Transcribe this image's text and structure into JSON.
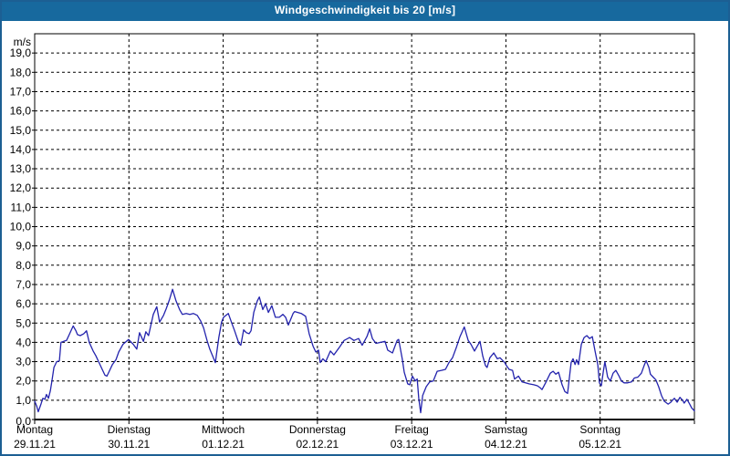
{
  "window": {
    "title": "Windgeschwindigkeit bis 20 [m/s]"
  },
  "colors": {
    "titlebar_bg": "#17699e",
    "titlebar_text": "#ffffff",
    "window_border": "#1c5f93",
    "plot_background": "#ffffff",
    "plot_border": "#000000",
    "gridline": "#000000",
    "line": "#2323ad",
    "label_text": "#000000"
  },
  "axes": {
    "y_unit_label": "m/s",
    "y_tick_labels": [
      "0,0",
      "1,0",
      "2,0",
      "3,0",
      "4,0",
      "5,0",
      "6,0",
      "7,0",
      "8,0",
      "9,0",
      "10,0",
      "11,0",
      "12,0",
      "13,0",
      "14,0",
      "15,0",
      "16,0",
      "17,0",
      "18,0",
      "19,0"
    ],
    "x_days": [
      {
        "name": "Montag",
        "date": "29.11.21"
      },
      {
        "name": "Dienstag",
        "date": "30.11.21"
      },
      {
        "name": "Mittwoch",
        "date": "01.12.21"
      },
      {
        "name": "Donnerstag",
        "date": "02.12.21"
      },
      {
        "name": "Freitag",
        "date": "03.12.21"
      },
      {
        "name": "Samstag",
        "date": "04.12.21"
      },
      {
        "name": "Sonntag",
        "date": "05.12.21"
      }
    ]
  },
  "chart_data": {
    "type": "line",
    "title": "Windgeschwindigkeit bis 20 [m/s]",
    "xlabel": "",
    "ylabel": "m/s",
    "ylim": [
      0,
      20
    ],
    "x_range_hours": [
      0,
      168
    ],
    "grid": true,
    "legend": false,
    "categories": [
      "Montag 29.11.21",
      "Dienstag 30.11.21",
      "Mittwoch 01.12.21",
      "Donnerstag 02.12.21",
      "Freitag 03.12.21",
      "Samstag 04.12.21",
      "Sonntag 05.12.21"
    ],
    "series": [
      {
        "name": "Windgeschwindigkeit [m/s]",
        "points": [
          [
            0,
            0.95
          ],
          [
            0.5,
            0.7
          ],
          [
            0.9,
            0.4
          ],
          [
            1.6,
            0.8
          ],
          [
            2.1,
            1.1
          ],
          [
            2.6,
            1.05
          ],
          [
            3,
            1.3
          ],
          [
            3.5,
            1.1
          ],
          [
            4,
            1.5
          ],
          [
            4.4,
            2
          ],
          [
            4.9,
            2.7
          ],
          [
            5.6,
            3
          ],
          [
            6.3,
            3.05
          ],
          [
            6.7,
            4
          ],
          [
            7.4,
            4.05
          ],
          [
            8.1,
            4.1
          ],
          [
            8.8,
            4.4
          ],
          [
            9.8,
            4.85
          ],
          [
            10.5,
            4.6
          ],
          [
            10.9,
            4.4
          ],
          [
            11.6,
            4.35
          ],
          [
            12.5,
            4.45
          ],
          [
            13.2,
            4.6
          ],
          [
            13.9,
            4
          ],
          [
            14.9,
            3.55
          ],
          [
            15.6,
            3.3
          ],
          [
            16.3,
            3
          ],
          [
            17.2,
            2.6
          ],
          [
            17.9,
            2.3
          ],
          [
            18.4,
            2.25
          ],
          [
            19.1,
            2.55
          ],
          [
            19.8,
            2.85
          ],
          [
            20.7,
            3.1
          ],
          [
            21.4,
            3.5
          ],
          [
            22.5,
            3.9
          ],
          [
            23.9,
            4.15
          ],
          [
            25.1,
            3.9
          ],
          [
            26,
            3.65
          ],
          [
            26.7,
            4.5
          ],
          [
            27.7,
            4.05
          ],
          [
            28.3,
            4.55
          ],
          [
            29,
            4.35
          ],
          [
            30.2,
            5.45
          ],
          [
            31.1,
            5.85
          ],
          [
            31.8,
            5.05
          ],
          [
            32.8,
            5.4
          ],
          [
            33.5,
            5.75
          ],
          [
            34.3,
            6.2
          ],
          [
            35.1,
            6.75
          ],
          [
            36,
            6.15
          ],
          [
            36.9,
            5.7
          ],
          [
            37.6,
            5.45
          ],
          [
            38.6,
            5.5
          ],
          [
            39.5,
            5.45
          ],
          [
            40.4,
            5.5
          ],
          [
            41.4,
            5.4
          ],
          [
            42.3,
            5.1
          ],
          [
            43,
            4.75
          ],
          [
            43.9,
            4.1
          ],
          [
            44.6,
            3.65
          ],
          [
            45.3,
            3.3
          ],
          [
            46,
            2.95
          ],
          [
            46.9,
            4.25
          ],
          [
            47.6,
            5.05
          ],
          [
            48.1,
            5.3
          ],
          [
            49.3,
            5.5
          ],
          [
            50.2,
            5
          ],
          [
            50.9,
            4.6
          ],
          [
            52,
            3.95
          ],
          [
            52.5,
            3.85
          ],
          [
            53.2,
            4.65
          ],
          [
            53.9,
            4.5
          ],
          [
            54.6,
            4.45
          ],
          [
            55.1,
            4.6
          ],
          [
            55.8,
            5.55
          ],
          [
            56.7,
            6.15
          ],
          [
            57.2,
            6.35
          ],
          [
            58.1,
            5.7
          ],
          [
            58.8,
            6
          ],
          [
            59.5,
            5.55
          ],
          [
            60.4,
            5.9
          ],
          [
            61.3,
            5.3
          ],
          [
            62.3,
            5.3
          ],
          [
            63.2,
            5.45
          ],
          [
            63.9,
            5.3
          ],
          [
            64.6,
            4.9
          ],
          [
            65.8,
            5.5
          ],
          [
            66.2,
            5.6
          ],
          [
            67.9,
            5.5
          ],
          [
            69,
            5.35
          ],
          [
            69.9,
            4.45
          ],
          [
            70.9,
            3.8
          ],
          [
            71.6,
            3.5
          ],
          [
            72.3,
            3.6
          ],
          [
            72.7,
            2.95
          ],
          [
            73.4,
            3.15
          ],
          [
            74.1,
            3
          ],
          [
            75.3,
            3.55
          ],
          [
            76.2,
            3.35
          ],
          [
            77.6,
            3.75
          ],
          [
            78.8,
            4.1
          ],
          [
            80.2,
            4.25
          ],
          [
            81.3,
            4.1
          ],
          [
            82.5,
            4.2
          ],
          [
            83.4,
            3.85
          ],
          [
            84.6,
            4.3
          ],
          [
            85.3,
            4.7
          ],
          [
            86,
            4.2
          ],
          [
            86.9,
            3.95
          ],
          [
            88.1,
            4
          ],
          [
            89.2,
            4.05
          ],
          [
            89.9,
            3.6
          ],
          [
            91.1,
            3.45
          ],
          [
            92.3,
            4.1
          ],
          [
            92.7,
            4.15
          ],
          [
            93.6,
            3.15
          ],
          [
            94.1,
            2.45
          ],
          [
            95,
            1.85
          ],
          [
            95.5,
            1.8
          ],
          [
            96.2,
            2.25
          ],
          [
            96.9,
            2
          ],
          [
            97.4,
            2.1
          ],
          [
            97.8,
            1.1
          ],
          [
            98.3,
            0.35
          ],
          [
            98.8,
            1.25
          ],
          [
            99.7,
            1.7
          ],
          [
            100.6,
            1.95
          ],
          [
            101.5,
            2
          ],
          [
            102.5,
            2.5
          ],
          [
            103.6,
            2.55
          ],
          [
            104.6,
            2.6
          ],
          [
            105.5,
            2.95
          ],
          [
            106.4,
            3.2
          ],
          [
            107.4,
            3.75
          ],
          [
            108.3,
            4.3
          ],
          [
            109.4,
            4.8
          ],
          [
            110.4,
            4.1
          ],
          [
            111.1,
            3.9
          ],
          [
            112,
            3.55
          ],
          [
            112.7,
            3.8
          ],
          [
            113.4,
            4.05
          ],
          [
            114.1,
            3.3
          ],
          [
            114.8,
            2.8
          ],
          [
            115.2,
            2.7
          ],
          [
            115.9,
            3.2
          ],
          [
            116.9,
            3.45
          ],
          [
            117.8,
            3.15
          ],
          [
            118.5,
            3.2
          ],
          [
            119.7,
            2.95
          ],
          [
            120.1,
            2.8
          ],
          [
            120.8,
            2.6
          ],
          [
            121.7,
            2.55
          ],
          [
            122.2,
            2.1
          ],
          [
            123.2,
            2.25
          ],
          [
            124.1,
            1.95
          ],
          [
            125,
            1.9
          ],
          [
            125.9,
            1.85
          ],
          [
            127.1,
            1.8
          ],
          [
            128,
            1.75
          ],
          [
            128.7,
            1.65
          ],
          [
            129.2,
            1.55
          ],
          [
            130.1,
            1.9
          ],
          [
            131.3,
            2.4
          ],
          [
            132,
            2.5
          ],
          [
            132.7,
            2.35
          ],
          [
            133.4,
            2.45
          ],
          [
            134.3,
            1.8
          ],
          [
            135,
            1.45
          ],
          [
            135.7,
            1.35
          ],
          [
            136.6,
            2.95
          ],
          [
            137.1,
            3.15
          ],
          [
            137.6,
            2.85
          ],
          [
            138,
            3.1
          ],
          [
            138.5,
            2.85
          ],
          [
            139.2,
            3.9
          ],
          [
            139.9,
            4.25
          ],
          [
            140.6,
            4.35
          ],
          [
            141.3,
            4.2
          ],
          [
            142,
            4.3
          ],
          [
            142.7,
            3.55
          ],
          [
            143.4,
            2.85
          ],
          [
            143.8,
            1.9
          ],
          [
            144.3,
            1.75
          ],
          [
            144.8,
            2.5
          ],
          [
            145.2,
            3
          ],
          [
            145.9,
            2.2
          ],
          [
            146.6,
            2
          ],
          [
            147.3,
            2.4
          ],
          [
            148,
            2.55
          ],
          [
            148.7,
            2.3
          ],
          [
            149.4,
            2
          ],
          [
            150.1,
            1.9
          ],
          [
            151,
            1.9
          ],
          [
            152,
            1.95
          ],
          [
            152.7,
            2.15
          ],
          [
            153.6,
            2.2
          ],
          [
            154.5,
            2.4
          ],
          [
            155.2,
            2.8
          ],
          [
            155.7,
            3.05
          ],
          [
            156.4,
            2.7
          ],
          [
            156.8,
            2.35
          ],
          [
            157.5,
            2.2
          ],
          [
            158.2,
            2.05
          ],
          [
            158.9,
            1.7
          ],
          [
            159.6,
            1.25
          ],
          [
            160.3,
            0.95
          ],
          [
            161.3,
            0.8
          ],
          [
            162,
            0.9
          ],
          [
            162.4,
            1
          ],
          [
            162.9,
            1.1
          ],
          [
            163.6,
            0.9
          ],
          [
            164.3,
            1.15
          ],
          [
            165,
            1
          ],
          [
            165.4,
            0.85
          ],
          [
            166.1,
            1.05
          ],
          [
            166.8,
            0.8
          ],
          [
            167.3,
            0.6
          ],
          [
            168,
            0.45
          ]
        ]
      }
    ]
  }
}
